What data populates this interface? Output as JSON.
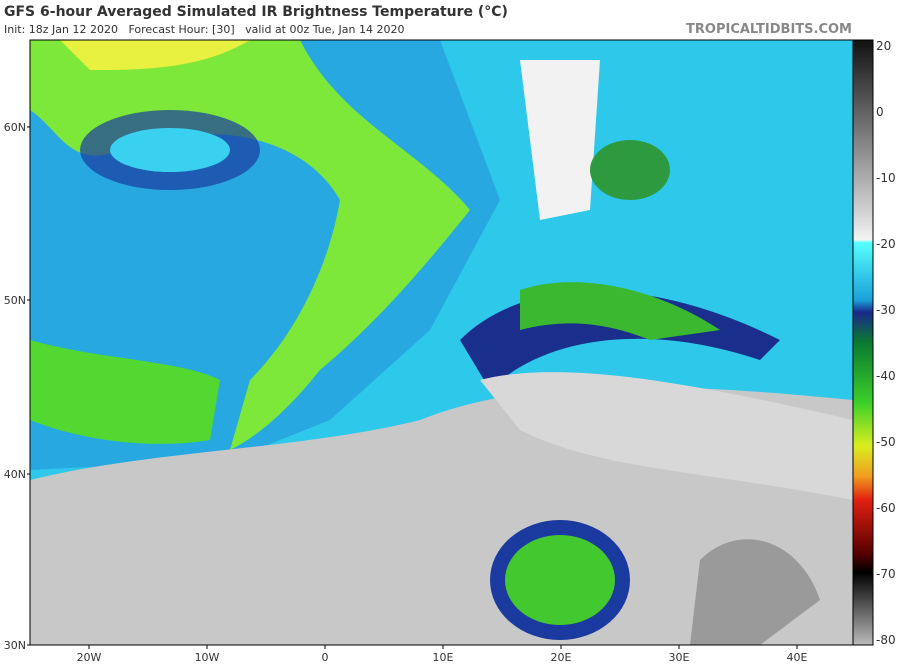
{
  "header": {
    "title": "GFS 6-hour Averaged Simulated IR Brightness Temperature (°C)",
    "subtitle": "Init: 18z Jan 12 2020   Forecast Hour: [30]   valid at 00z Tue, Jan 14 2020",
    "watermark": "TROPICALTIDBITS.COM"
  },
  "map": {
    "lat_labels": [
      "60N",
      "50N",
      "40N",
      "30N"
    ],
    "lon_labels": [
      "20W",
      "10W",
      "0",
      "10E",
      "20E",
      "30E",
      "40E"
    ]
  },
  "colorbar": {
    "ticks": [
      20,
      0,
      -10,
      -20,
      -30,
      -40,
      -50,
      -60,
      -70,
      -80
    ]
  }
}
